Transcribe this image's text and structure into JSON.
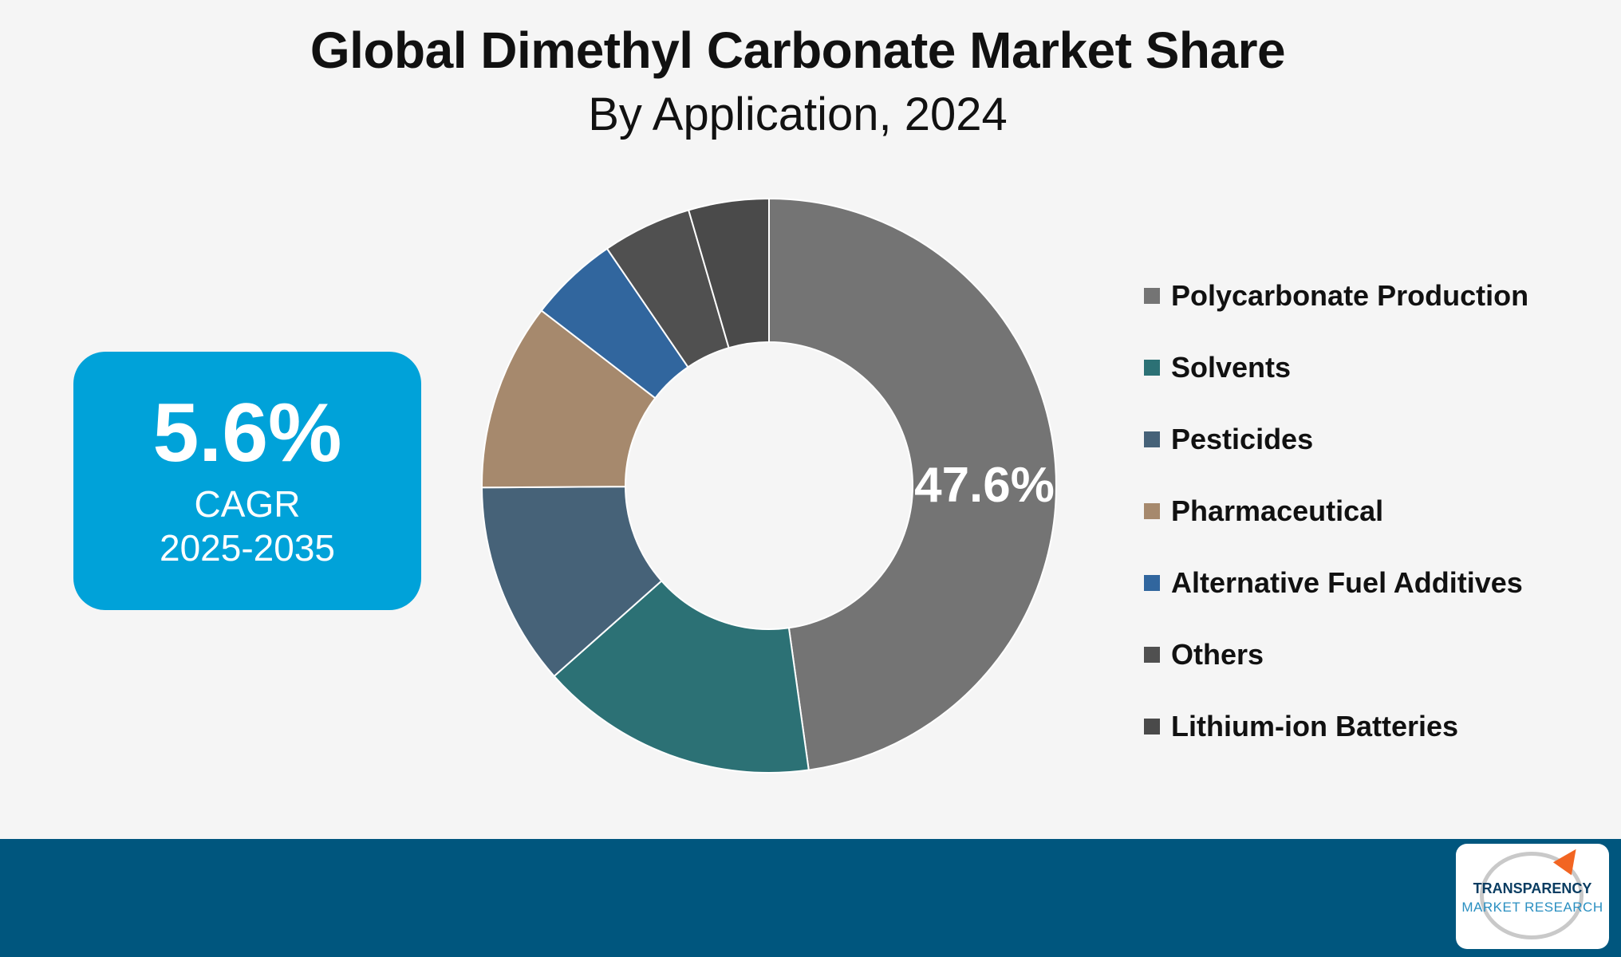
{
  "chart_data": {
    "type": "pie",
    "donut": true,
    "title": "Global Dimethyl Carbonate Market Share",
    "subtitle": "By Application, 2024",
    "categories": [
      "Polycarbonate Production",
      "Solvents",
      "Pesticides",
      "Pharmaceutical",
      "Alternative Fuel Additives",
      "Others",
      "Lithium-ion Batteries"
    ],
    "values": [
      47.6,
      15.6,
      11.4,
      10.5,
      5.0,
      5.0,
      4.5
    ],
    "data_labels": [
      "47.6%",
      "",
      "",
      "",
      "",
      "",
      ""
    ],
    "colors": [
      "#747474",
      "#2c7175",
      "#466278",
      "#a6896d",
      "#31669e",
      "#505050",
      "#4a4a4a"
    ],
    "legend_position": "right"
  },
  "cagr": {
    "value": "5.6%",
    "label": "CAGR",
    "period": "2025-2035"
  },
  "logo": {
    "line1": "TRANSPARENCY",
    "line2": "MARKET RESEARCH"
  }
}
